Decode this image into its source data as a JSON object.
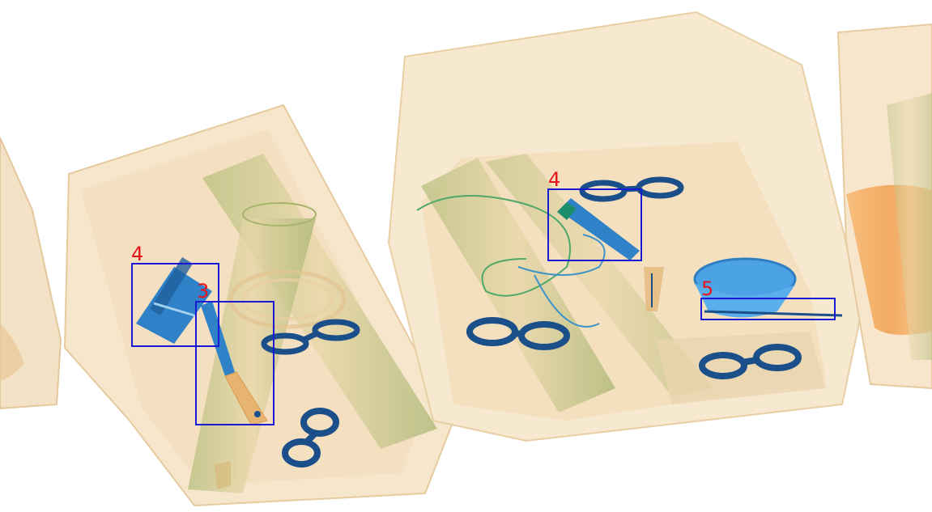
{
  "image": {
    "kind": "x-ray baggage scan",
    "colors": {
      "organic": "#e9c797",
      "organic_light": "#f6e7cf",
      "metal_blue": "#1f6fb8",
      "metal_dark": "#1b4f8a",
      "orange_container": "#f4a85a",
      "green_tint": "#b9c58a",
      "box_stroke": "#1a1ad6",
      "label_color": "#e8141c"
    }
  },
  "detections": [
    {
      "label": "4"
    },
    {
      "label": "3"
    },
    {
      "label": "4"
    },
    {
      "label": "5"
    }
  ]
}
